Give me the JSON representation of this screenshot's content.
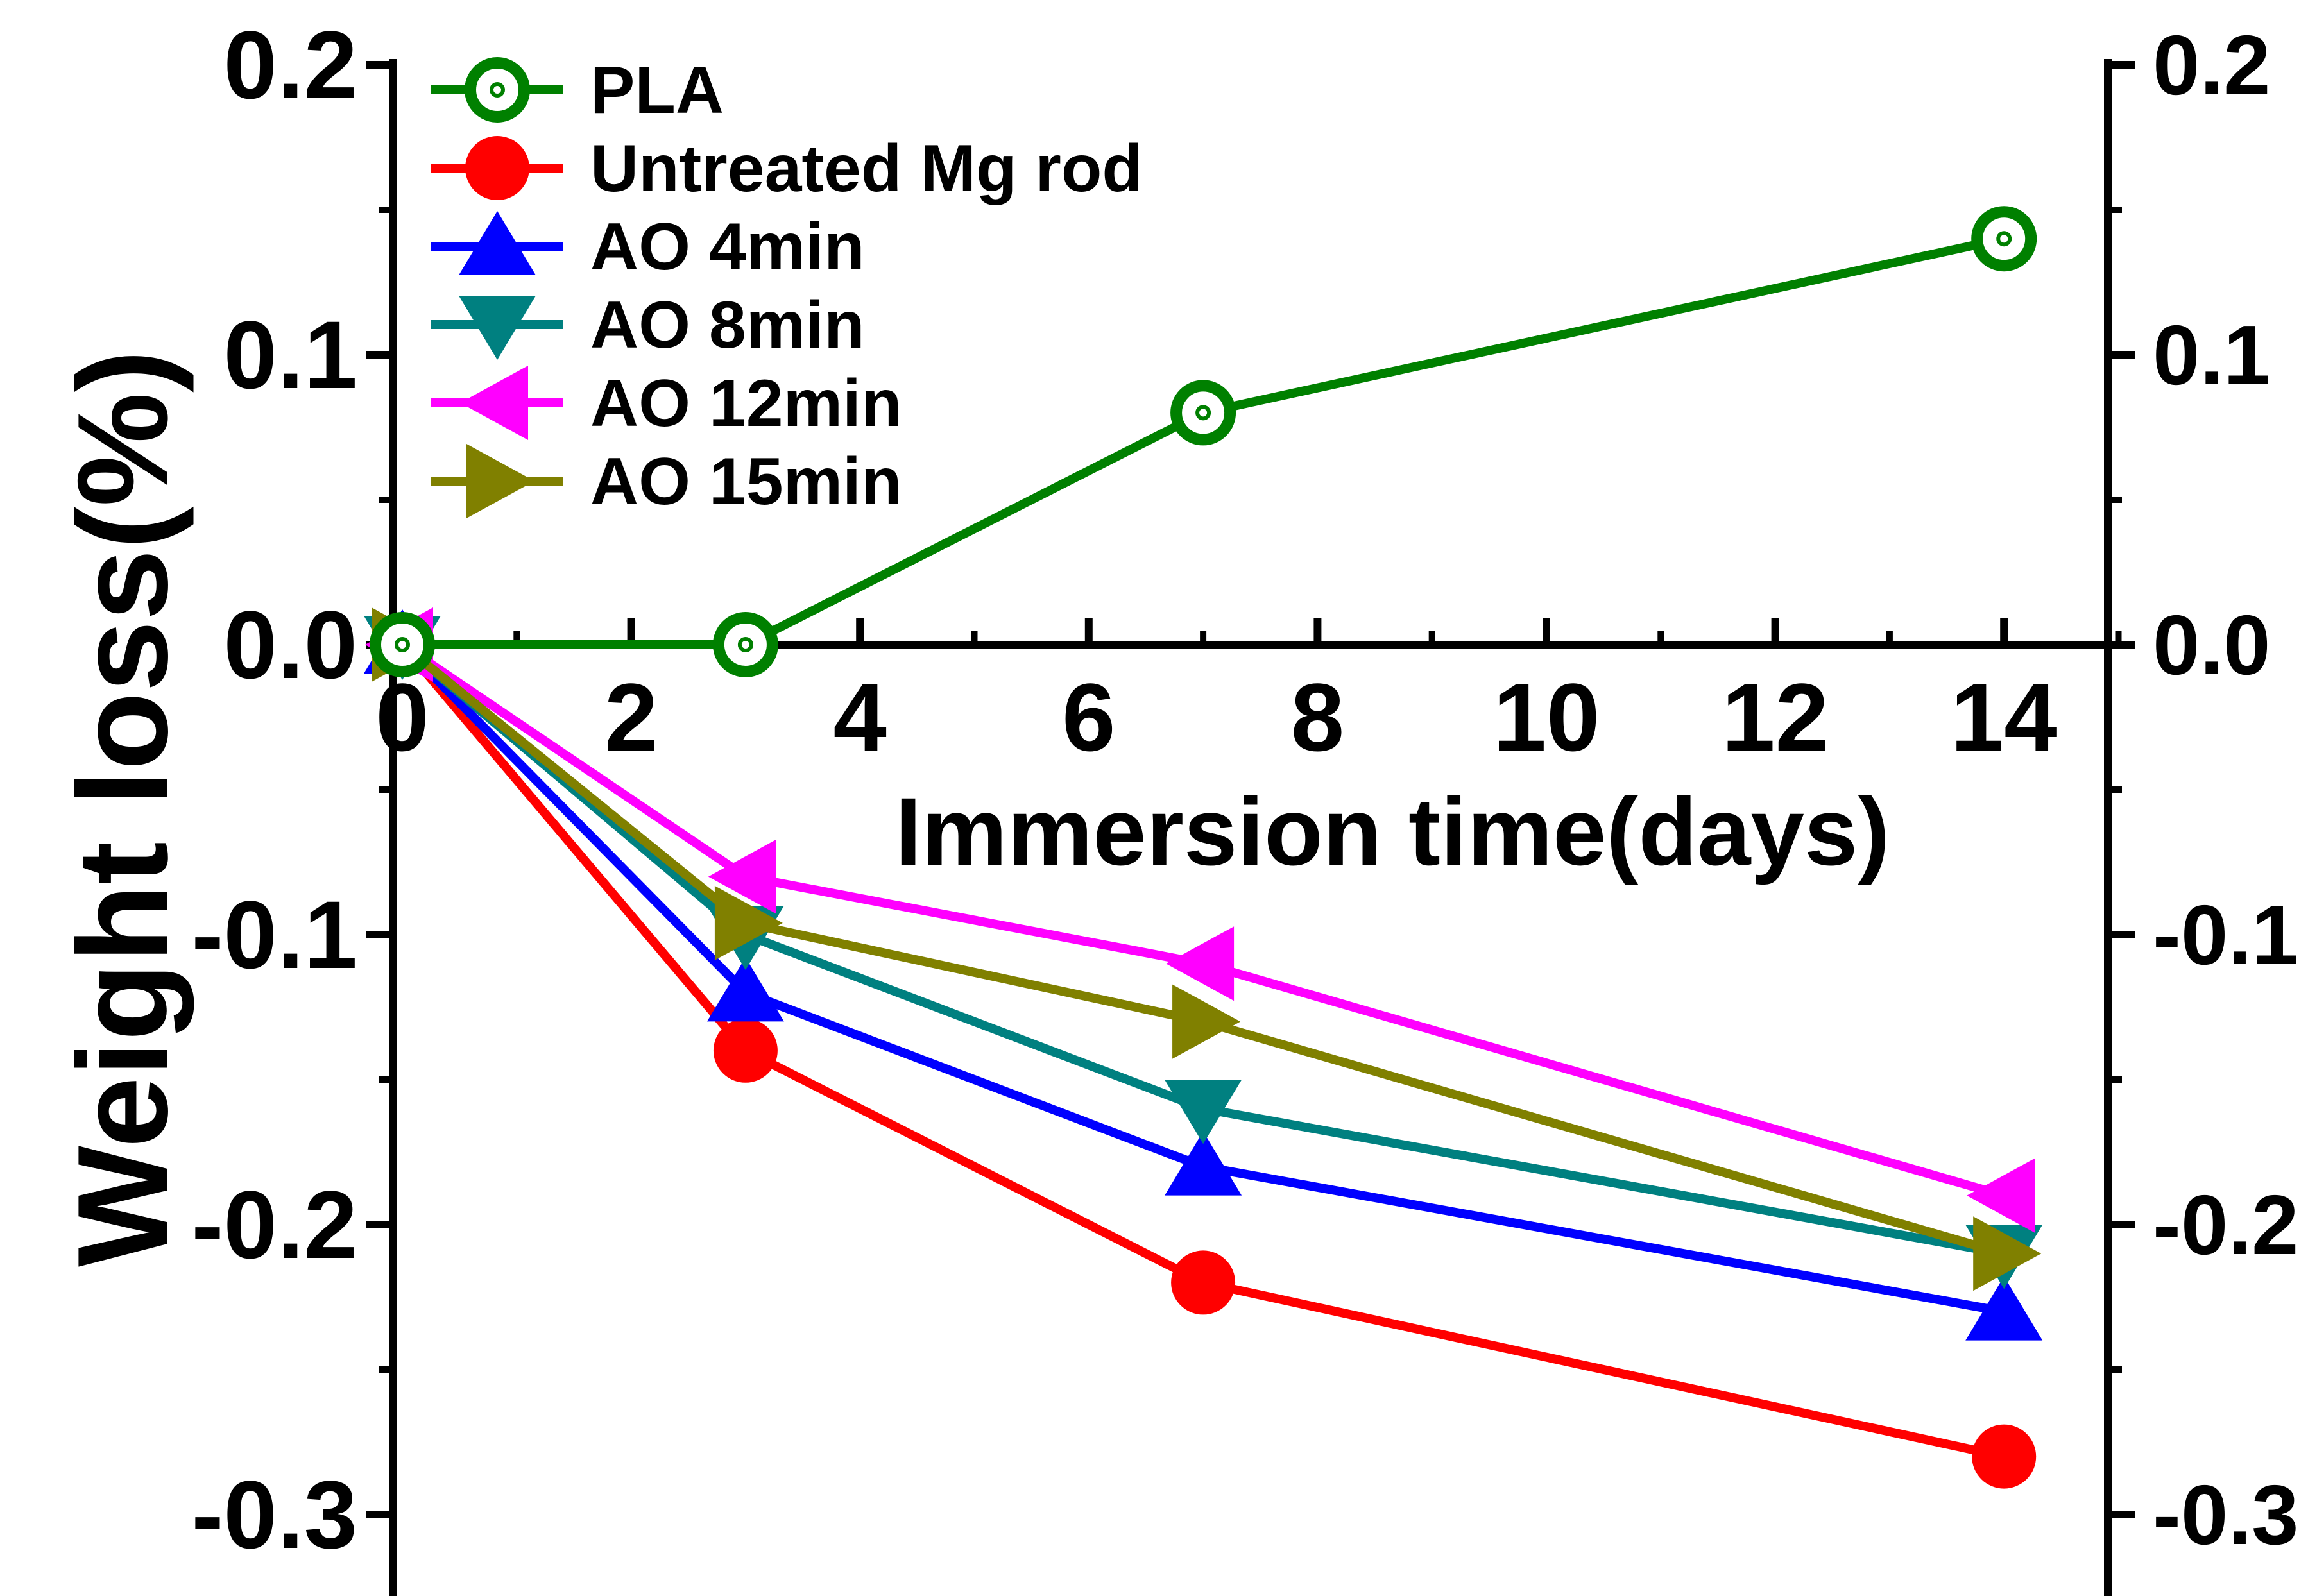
{
  "chart_data": {
    "type": "line",
    "xlabel": "Immersion time(days)",
    "ylabel": "Weight loss(%)",
    "xlim": [
      0,
      15
    ],
    "ylim": [
      -0.31,
      0.2
    ],
    "x_ticks": [
      "0",
      "2",
      "4",
      "6",
      "8",
      "10",
      "12",
      "14"
    ],
    "y_ticks": [
      "0.2",
      "0.1",
      "0.0",
      "-0.1",
      "-0.2",
      "-0.3"
    ],
    "right_y_ticks": [
      "0.2",
      "0.1",
      "0.0",
      "-0.1",
      "-0.2",
      "-0.3"
    ],
    "legend_position": "top-left",
    "series": [
      {
        "name": "PLA",
        "color": "#008000",
        "marker": "open-circle",
        "x": [
          0,
          3,
          7,
          14
        ],
        "values": [
          0.0,
          0.0,
          0.08,
          0.14
        ]
      },
      {
        "name": "Untreated Mg rod",
        "color": "#ff0000",
        "marker": "circle",
        "x": [
          0,
          3,
          7,
          14
        ],
        "values": [
          0.0,
          -0.14,
          -0.22,
          -0.28
        ]
      },
      {
        "name": "AO 4min",
        "color": "#0000ff",
        "marker": "triangle-up",
        "x": [
          0,
          3,
          7,
          14
        ],
        "values": [
          0.0,
          -0.12,
          -0.18,
          -0.23
        ]
      },
      {
        "name": "AO 8min",
        "color": "#008080",
        "marker": "triangle-down",
        "x": [
          0,
          3,
          7,
          14
        ],
        "values": [
          0.0,
          -0.1,
          -0.16,
          -0.21
        ]
      },
      {
        "name": "AO 12min",
        "color": "#ff00ff",
        "marker": "triangle-left",
        "x": [
          0,
          3,
          7,
          14
        ],
        "values": [
          0.0,
          -0.08,
          -0.11,
          -0.19
        ]
      },
      {
        "name": "AO 15min",
        "color": "#808000",
        "marker": "triangle-right",
        "x": [
          0,
          3,
          7,
          14
        ],
        "values": [
          0.0,
          -0.096,
          -0.13,
          -0.21
        ]
      }
    ]
  }
}
